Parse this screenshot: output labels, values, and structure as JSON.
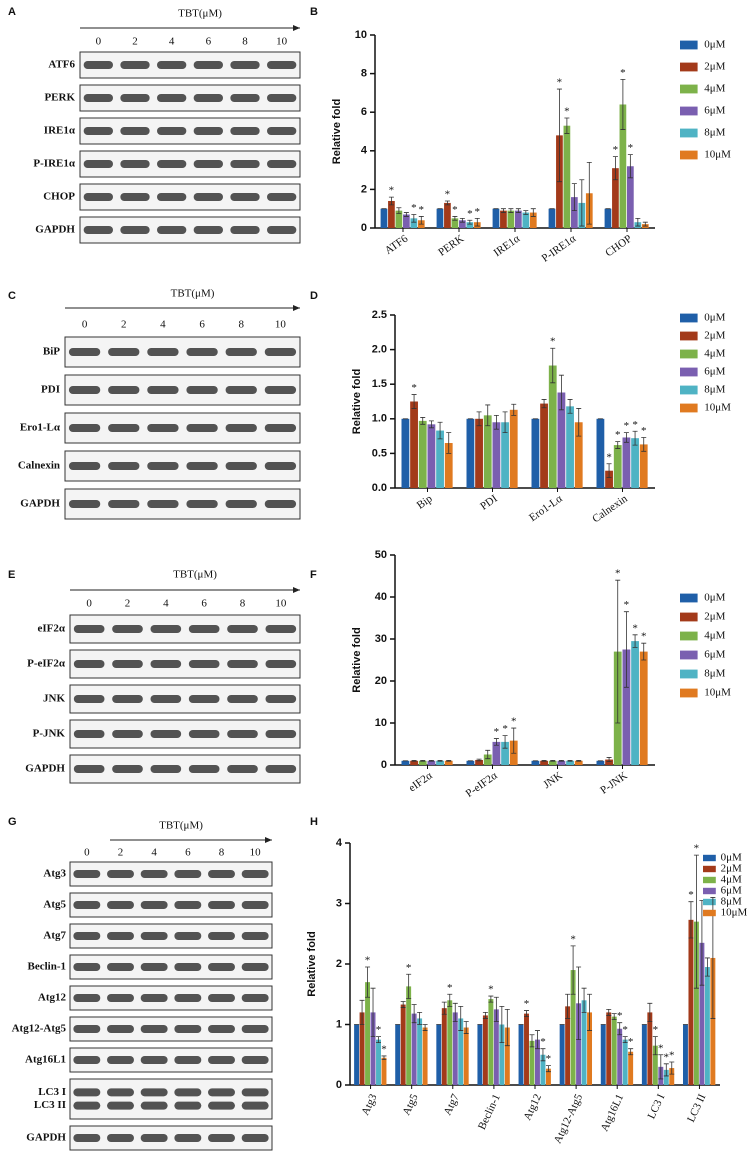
{
  "blots": [
    {
      "panel": "A",
      "title": "TBT(μM)",
      "lanes": [
        "0",
        "2",
        "4",
        "6",
        "8",
        "10"
      ],
      "rows": [
        [
          "ATF6"
        ],
        [
          "PERK"
        ],
        [
          "IRE1α"
        ],
        [
          "P-IRE1α"
        ],
        [
          "CHOP"
        ],
        [
          "GAPDH"
        ]
      ]
    },
    {
      "panel": "C",
      "title": "TBT(μM)",
      "lanes": [
        "0",
        "2",
        "4",
        "6",
        "8",
        "10"
      ],
      "rows": [
        [
          "BiP"
        ],
        [
          "PDI"
        ],
        [
          "Ero1-Lα"
        ],
        [
          "Calnexin"
        ],
        [
          "GAPDH"
        ]
      ]
    },
    {
      "panel": "E",
      "title": "TBT(μM)",
      "lanes": [
        "0",
        "2",
        "4",
        "6",
        "8",
        "10"
      ],
      "rows": [
        [
          "eIF2α"
        ],
        [
          "P-eIF2α"
        ],
        [
          "JNK"
        ],
        [
          "P-JNK"
        ],
        [
          "GAPDH"
        ]
      ]
    },
    {
      "panel": "G",
      "title": "TBT(μM)",
      "lanes": [
        "0",
        "2",
        "4",
        "6",
        "8",
        "10"
      ],
      "rows": [
        [
          "Atg3"
        ],
        [
          "Atg5"
        ],
        [
          "Atg7"
        ],
        [
          "Beclin-1"
        ],
        [
          "Atg12"
        ],
        [
          "Atg12-Atg5"
        ],
        [
          "Atg16L1"
        ],
        [
          "LC3 I",
          "LC3 II"
        ],
        [
          "GAPDH"
        ]
      ]
    }
  ],
  "chart_data": [
    {
      "type": "bar",
      "panel": "B",
      "y_label": "Relative fold",
      "marker": "*",
      "categories": [
        "ATF6",
        "PERK",
        "IRE1α",
        "P-IRE1α",
        "CHOP"
      ],
      "ylim": [
        0,
        10
      ],
      "yticks": [
        0,
        2,
        4,
        6,
        8,
        10
      ],
      "series": [
        {
          "name": "0μM",
          "color": "#1f5fa8",
          "values": [
            1,
            1,
            1,
            1,
            1
          ],
          "errors": [
            0,
            0,
            0,
            0,
            0
          ],
          "significant": [
            false,
            false,
            false,
            false,
            false
          ]
        },
        {
          "name": "2μM",
          "color": "#a33a1a",
          "values": [
            1.4,
            1.3,
            0.9,
            4.8,
            3.1
          ],
          "errors": [
            0.2,
            0.1,
            0.1,
            2.4,
            0.6
          ],
          "significant": [
            true,
            true,
            false,
            true,
            true
          ]
        },
        {
          "name": "4μM",
          "color": "#7db24a",
          "values": [
            0.9,
            0.5,
            0.9,
            5.3,
            6.4
          ],
          "errors": [
            0.15,
            0.1,
            0.1,
            0.4,
            1.3
          ],
          "significant": [
            false,
            true,
            false,
            true,
            true
          ]
        },
        {
          "name": "6μM",
          "color": "#7a5fb0",
          "values": [
            0.7,
            0.4,
            0.9,
            1.6,
            3.2
          ],
          "errors": [
            0.1,
            0.1,
            0.1,
            0.7,
            0.6
          ],
          "significant": [
            false,
            false,
            false,
            false,
            true
          ]
        },
        {
          "name": "8μM",
          "color": "#4fb3c4",
          "values": [
            0.5,
            0.3,
            0.8,
            1.3,
            0.3
          ],
          "errors": [
            0.2,
            0.1,
            0.1,
            1.2,
            0.2
          ],
          "significant": [
            true,
            true,
            false,
            false,
            false
          ]
        },
        {
          "name": "10μM",
          "color": "#e07a20",
          "values": [
            0.4,
            0.3,
            0.8,
            1.8,
            0.2
          ],
          "errors": [
            0.2,
            0.2,
            0.2,
            1.6,
            0.1
          ],
          "significant": [
            true,
            true,
            false,
            false,
            false
          ]
        }
      ]
    },
    {
      "type": "bar",
      "panel": "D",
      "y_label": "Relative fold",
      "marker": "*",
      "categories": [
        "Bip",
        "PDI",
        "Ero1-Lα",
        "Calnexin"
      ],
      "ylim": [
        0,
        2.5
      ],
      "yticks": [
        {
          "value": 0,
          "label": "0.0"
        },
        0.5,
        {
          "value": 1,
          "label": "1.0"
        },
        1.5,
        {
          "value": 2,
          "label": "2.0"
        },
        2.5
      ],
      "series": [
        {
          "name": "0μM",
          "color": "#1f5fa8",
          "values": [
            1,
            1,
            1,
            1
          ],
          "errors": [
            0,
            0,
            0,
            0
          ],
          "significant": [
            false,
            false,
            false,
            false
          ]
        },
        {
          "name": "2μM",
          "color": "#a33a1a",
          "values": [
            1.25,
            1.0,
            1.22,
            0.25
          ],
          "errors": [
            0.1,
            0.1,
            0.06,
            0.1
          ],
          "significant": [
            true,
            false,
            false,
            true
          ]
        },
        {
          "name": "4μM",
          "color": "#7db24a",
          "values": [
            0.97,
            1.05,
            1.77,
            0.62
          ],
          "errors": [
            0.05,
            0.15,
            0.25,
            0.05
          ],
          "significant": [
            false,
            false,
            true,
            true
          ]
        },
        {
          "name": "6μM",
          "color": "#7a5fb0",
          "values": [
            0.92,
            0.95,
            1.38,
            0.73
          ],
          "errors": [
            0.05,
            0.1,
            0.25,
            0.07
          ],
          "significant": [
            false,
            false,
            false,
            true
          ]
        },
        {
          "name": "8μM",
          "color": "#4fb3c4",
          "values": [
            0.83,
            0.95,
            1.18,
            0.72
          ],
          "errors": [
            0.12,
            0.15,
            0.1,
            0.1
          ],
          "significant": [
            false,
            false,
            false,
            true
          ]
        },
        {
          "name": "10μM",
          "color": "#e07a20",
          "values": [
            0.65,
            1.13,
            0.95,
            0.63
          ],
          "errors": [
            0.15,
            0.08,
            0.2,
            0.1
          ],
          "significant": [
            false,
            false,
            false,
            true
          ]
        }
      ]
    },
    {
      "type": "bar",
      "panel": "F",
      "y_label": "Relative fold",
      "marker": "*",
      "categories": [
        "eIF2α",
        "P-eIF2α",
        "JNK",
        "P-JNK"
      ],
      "ylim": [
        0,
        50
      ],
      "yticks": [
        0,
        10,
        20,
        30,
        40,
        50
      ],
      "series": [
        {
          "name": "0μM",
          "color": "#1f5fa8",
          "values": [
            1,
            1,
            1,
            1
          ],
          "errors": [
            0,
            0,
            0,
            0
          ],
          "significant": [
            false,
            false,
            false,
            false
          ]
        },
        {
          "name": "2μM",
          "color": "#a33a1a",
          "values": [
            1,
            1.2,
            1,
            1.3
          ],
          "errors": [
            0.1,
            0.2,
            0.1,
            0.5
          ],
          "significant": [
            false,
            false,
            false,
            false
          ]
        },
        {
          "name": "4μM",
          "color": "#7db24a",
          "values": [
            1,
            2.5,
            1,
            27
          ],
          "errors": [
            0.1,
            1,
            0.1,
            17
          ],
          "significant": [
            false,
            false,
            false,
            true
          ]
        },
        {
          "name": "6μM",
          "color": "#7a5fb0",
          "values": [
            1,
            5.5,
            1,
            27.5
          ],
          "errors": [
            0.1,
            0.8,
            0.1,
            9
          ],
          "significant": [
            false,
            true,
            false,
            true
          ]
        },
        {
          "name": "8μM",
          "color": "#4fb3c4",
          "values": [
            1,
            5.5,
            1,
            29.5
          ],
          "errors": [
            0.1,
            1.5,
            0.1,
            1.5
          ],
          "significant": [
            false,
            true,
            false,
            true
          ]
        },
        {
          "name": "10μM",
          "color": "#e07a20",
          "values": [
            1,
            5.8,
            1,
            27
          ],
          "errors": [
            0.1,
            3,
            0.1,
            2
          ],
          "significant": [
            false,
            true,
            false,
            true
          ]
        }
      ]
    },
    {
      "type": "bar",
      "panel": "H",
      "y_label": "Relative fold",
      "marker": "*",
      "categories": [
        "Atg3",
        "Atg5",
        "Atg7",
        "Beclin-1",
        "Atg12",
        "Atg12-Atg5",
        "Atg16L1",
        "LC3 I",
        "LC3 II"
      ],
      "ylim": [
        0,
        4
      ],
      "yticks": [
        0,
        1,
        2,
        3,
        4
      ],
      "series": [
        {
          "name": "0μM",
          "color": "#1f5fa8",
          "values": [
            1,
            1,
            1,
            1,
            1,
            1,
            1,
            1,
            1
          ],
          "errors": [
            0,
            0,
            0,
            0,
            0,
            0,
            0,
            0,
            0
          ],
          "significant": [
            false,
            false,
            false,
            false,
            false,
            false,
            false,
            false,
            false
          ]
        },
        {
          "name": "2μM",
          "color": "#a33a1a",
          "values": [
            1.2,
            1.33,
            1.27,
            1.15,
            1.18,
            1.3,
            1.2,
            1.2,
            2.73
          ],
          "errors": [
            0.2,
            0.05,
            0.1,
            0.05,
            0.05,
            0.2,
            0.05,
            0.15,
            0.3
          ],
          "significant": [
            false,
            false,
            false,
            false,
            true,
            false,
            false,
            false,
            true
          ]
        },
        {
          "name": "4μM",
          "color": "#7db24a",
          "values": [
            1.7,
            1.63,
            1.4,
            1.42,
            0.73,
            1.9,
            1.13,
            0.65,
            2.7
          ],
          "errors": [
            0.25,
            0.2,
            0.1,
            0.05,
            0.1,
            0.4,
            0.05,
            0.15,
            1.1
          ],
          "significant": [
            true,
            true,
            true,
            true,
            false,
            true,
            false,
            true,
            true
          ]
        },
        {
          "name": "6μM",
          "color": "#7a5fb0",
          "values": [
            1.2,
            1.18,
            1.2,
            1.25,
            0.75,
            1.35,
            0.93,
            0.3,
            2.35
          ],
          "errors": [
            0.4,
            0.15,
            0.15,
            0.2,
            0.15,
            0.6,
            0.1,
            0.2,
            0.7
          ],
          "significant": [
            false,
            false,
            false,
            false,
            false,
            false,
            true,
            true,
            false
          ]
        },
        {
          "name": "8μM",
          "color": "#4fb3c4",
          "values": [
            0.75,
            1.1,
            1.1,
            1.0,
            0.5,
            1.4,
            0.75,
            0.25,
            1.95
          ],
          "errors": [
            0.05,
            0.1,
            0.2,
            0.3,
            0.1,
            0.2,
            0.05,
            0.1,
            0.15
          ],
          "significant": [
            true,
            false,
            false,
            false,
            true,
            false,
            true,
            true,
            false
          ]
        },
        {
          "name": "10μM",
          "color": "#e07a20",
          "values": [
            0.45,
            0.95,
            0.95,
            0.95,
            0.27,
            1.2,
            0.55,
            0.28,
            2.1
          ],
          "errors": [
            0.03,
            0.05,
            0.1,
            0.3,
            0.05,
            0.3,
            0.05,
            0.1,
            1.0
          ],
          "significant": [
            true,
            false,
            false,
            false,
            true,
            false,
            true,
            true,
            false
          ]
        }
      ]
    }
  ]
}
